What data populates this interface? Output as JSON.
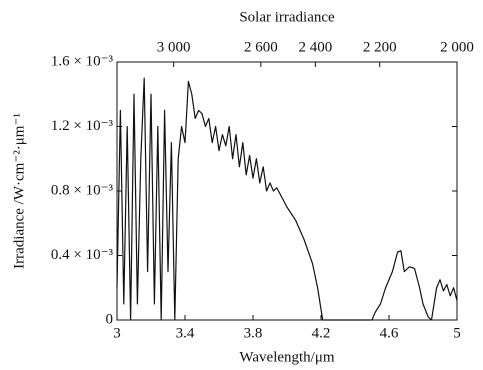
{
  "chart_data": {
    "type": "line",
    "x2_title": "Solar irradiance",
    "x_label": "Wavelength/μm",
    "y_label": "Irradiance /W·cm⁻²·μm⁻¹",
    "xlim": [
      3,
      5
    ],
    "xticks": [
      3,
      3.4,
      3.8,
      4.2,
      4.6,
      5
    ],
    "x2scale": "reciprocal",
    "x2ticks": [
      {
        "value": 3000,
        "label": "3 000"
      },
      {
        "value": 2600,
        "label": "2 600"
      },
      {
        "value": 2400,
        "label": "2 400"
      },
      {
        "value": 2200,
        "label": "2 200"
      },
      {
        "value": 2000,
        "label": "2 000"
      }
    ],
    "ylim": [
      0,
      0.0016
    ],
    "yticks": [
      0,
      {
        "value": 0.0004,
        "label": "0.4 × 10⁻³"
      },
      {
        "value": 0.0008,
        "label": "0.8 × 10⁻³"
      },
      {
        "value": 0.0012,
        "label": "1.2 × 10⁻³"
      },
      {
        "value": 0.0016,
        "label": "1.6 × 10⁻³"
      }
    ],
    "x": [
      3.0,
      3.02,
      3.04,
      3.06,
      3.08,
      3.1,
      3.12,
      3.14,
      3.16,
      3.18,
      3.2,
      3.22,
      3.24,
      3.26,
      3.28,
      3.3,
      3.32,
      3.34,
      3.36,
      3.38,
      3.4,
      3.42,
      3.44,
      3.46,
      3.48,
      3.5,
      3.52,
      3.54,
      3.56,
      3.58,
      3.6,
      3.62,
      3.64,
      3.66,
      3.68,
      3.7,
      3.72,
      3.74,
      3.76,
      3.78,
      3.8,
      3.82,
      3.84,
      3.86,
      3.88,
      3.9,
      3.92,
      3.94,
      3.96,
      4.0,
      4.05,
      4.1,
      4.15,
      4.18,
      4.21,
      4.25,
      4.5,
      4.52,
      4.55,
      4.58,
      4.62,
      4.65,
      4.67,
      4.69,
      4.72,
      4.75,
      4.78,
      4.8,
      4.83,
      4.85,
      4.88,
      4.9,
      4.92,
      4.94,
      4.96,
      4.98,
      5.0
    ],
    "series": [
      {
        "color": "#111111",
        "values": [
          0.0002,
          0.0013,
          0.0001,
          0.0012,
          0.0,
          0.0014,
          0.0001,
          0.001,
          0.0015,
          0.0003,
          0.0014,
          0.0001,
          0.0012,
          0.0,
          0.0013,
          0.0003,
          0.0011,
          0.0,
          0.001,
          0.0012,
          0.0011,
          0.00148,
          0.0014,
          0.00125,
          0.0013,
          0.00128,
          0.0012,
          0.00125,
          0.0011,
          0.0012,
          0.00105,
          0.00115,
          0.00108,
          0.0012,
          0.001,
          0.00115,
          0.00095,
          0.0011,
          0.0009,
          0.00102,
          0.00088,
          0.001,
          0.00085,
          0.00095,
          0.0008,
          0.00085,
          0.0008,
          0.00082,
          0.00078,
          0.0007,
          0.00062,
          0.0005,
          0.00035,
          0.0002,
          0.0,
          0.0,
          0.0,
          5e-05,
          0.0001,
          0.0002,
          0.0003,
          0.00042,
          0.00043,
          0.0003,
          0.00033,
          0.00032,
          0.0002,
          0.0001,
          2e-05,
          0.0,
          0.0002,
          0.00025,
          0.00018,
          0.00022,
          0.00015,
          0.0002,
          0.00012
        ]
      }
    ]
  }
}
